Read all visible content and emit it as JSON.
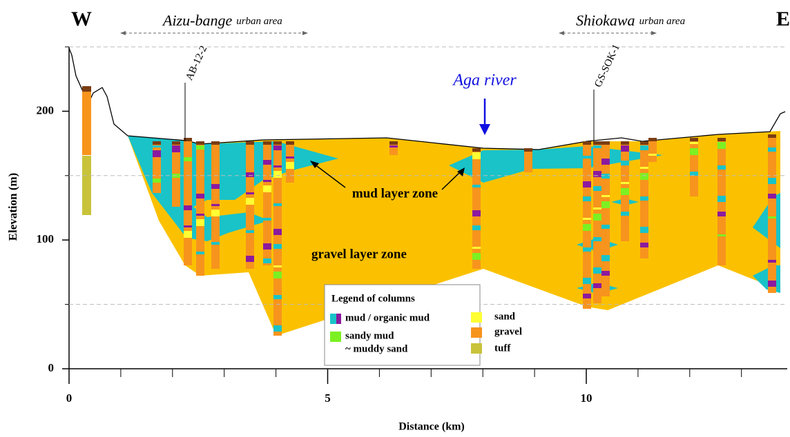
{
  "chart_data": {
    "type": "cross-section",
    "x_label": "Distance (km)",
    "y_label": "Elevation (m)",
    "xlim": [
      0,
      14
    ],
    "ylim": [
      0,
      250
    ],
    "xticks": [
      0,
      5,
      10
    ],
    "x_minor_ticks": [
      1,
      2,
      3,
      4,
      6,
      7,
      8,
      9,
      11,
      12,
      13,
      14
    ],
    "yticks": [
      0,
      100,
      200
    ],
    "y_minor_ticks": [
      50,
      150,
      250
    ],
    "grid": true,
    "directions": {
      "west": "W",
      "east": "E"
    },
    "urban_areas": [
      {
        "name": "Aizu-bange",
        "suffix": "urban area"
      },
      {
        "name": "Shiokawa",
        "suffix": "urban area"
      }
    ],
    "boreholes": [
      "AB-12-2",
      "GS-SOK-1"
    ],
    "river": "Aga river",
    "zones": [
      "mud layer zone",
      "gravel layer zone"
    ],
    "legend": {
      "title": "Legend of columns",
      "items": [
        "mud / organic mud",
        "sandy mud",
        "~ muddy sand",
        "sand",
        "gravel",
        "tuff"
      ]
    }
  }
}
